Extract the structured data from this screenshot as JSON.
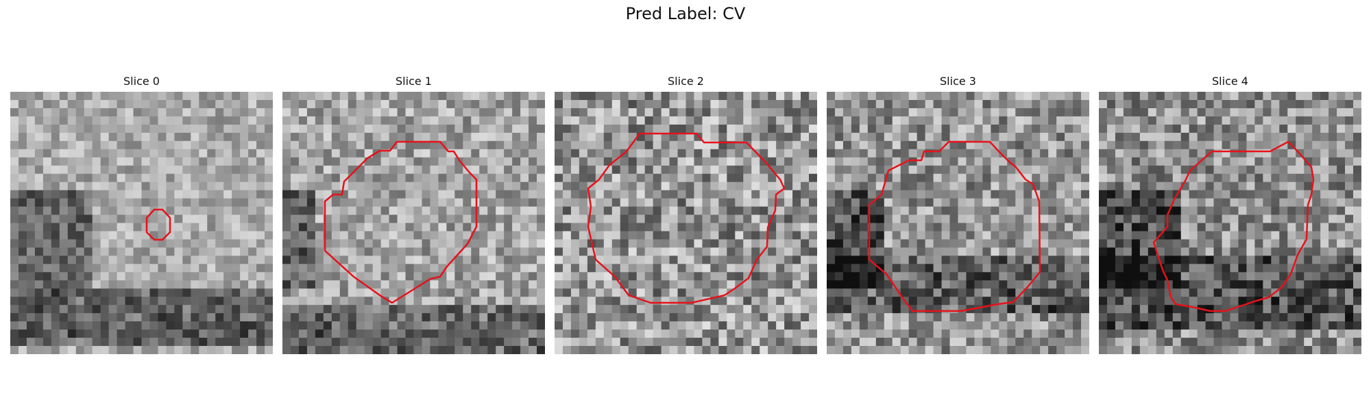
{
  "figure": {
    "title": "Pred Label: CV"
  },
  "slices": [
    {
      "title": "Slice 0"
    },
    {
      "title": "Slice 1"
    },
    {
      "title": "Slice 2"
    },
    {
      "title": "Slice 3"
    },
    {
      "title": "Slice 4"
    }
  ],
  "colors": {
    "contour": "#e8111a",
    "background": "#ffffff"
  }
}
